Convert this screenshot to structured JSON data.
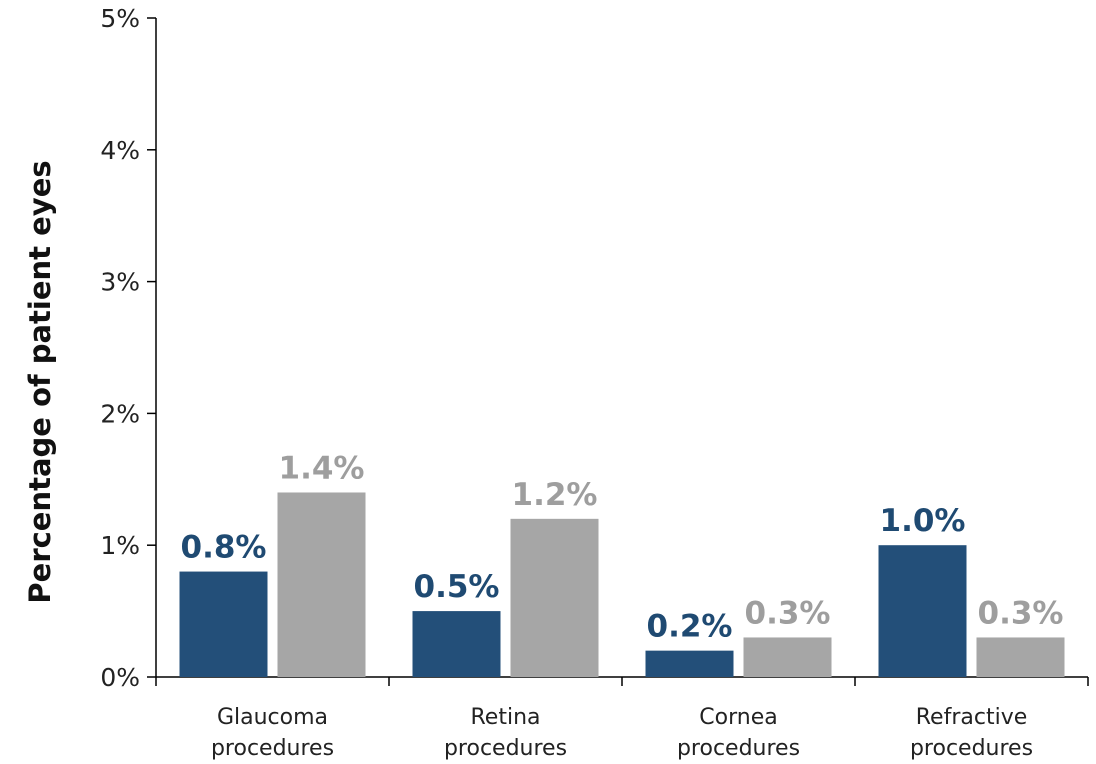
{
  "chart_data": {
    "type": "bar",
    "title": "",
    "xlabel": "",
    "ylabel": "Percentage of patient eyes",
    "ylim": [
      0,
      5
    ],
    "y_ticks": [
      "0%",
      "1%",
      "2%",
      "3%",
      "4%",
      "5%"
    ],
    "grid": false,
    "legend": "none",
    "categories": [
      [
        "Glaucoma",
        "procedures"
      ],
      [
        "Retina",
        "procedures"
      ],
      [
        "Cornea",
        "procedures"
      ],
      [
        "Refractive",
        "procedures"
      ]
    ],
    "series": [
      {
        "values": [
          0.8,
          0.5,
          0.2,
          1.0
        ],
        "labels": [
          "0.8%",
          "0.5%",
          "0.2%",
          "1.0%"
        ],
        "color": "#234f79"
      },
      {
        "values": [
          1.4,
          1.2,
          0.3,
          0.3
        ],
        "labels": [
          "1.4%",
          "1.2%",
          "0.3%",
          "0.3%"
        ],
        "color": "#a6a6a6"
      }
    ]
  }
}
